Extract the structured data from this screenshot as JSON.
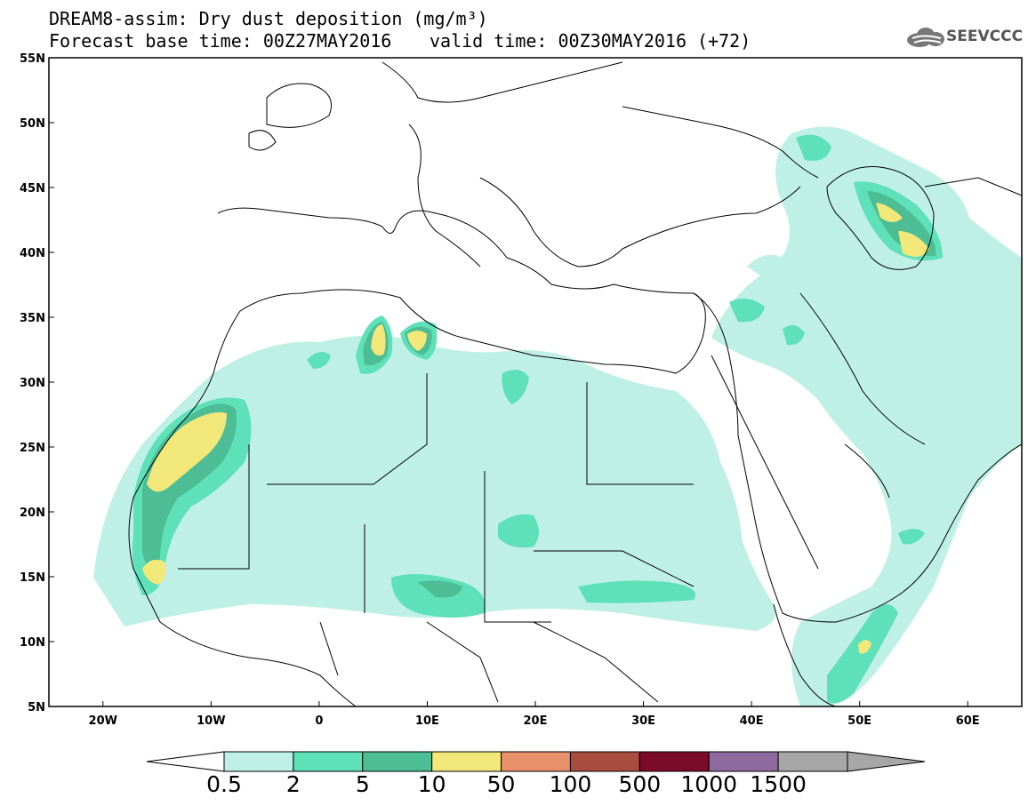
{
  "header": {
    "title_line1": "DREAM8-assim: Dry dust deposition (mg/m³)",
    "title_line2": "Forecast base time: 00Z27MAY2016",
    "valid_time": "valid time: 00Z30MAY2016 (+72)",
    "logo_text": "SEEVCCC"
  },
  "map": {
    "lat_range": [
      5,
      55
    ],
    "lon_range": [
      -25,
      65
    ],
    "lat_labels": [
      "55N",
      "50N",
      "45N",
      "40N",
      "35N",
      "30N",
      "25N",
      "20N",
      "15N",
      "10N",
      "5N"
    ],
    "lon_labels": [
      "20W",
      "10W",
      "0",
      "10E",
      "20E",
      "30E",
      "40E",
      "50E",
      "60E"
    ]
  },
  "colorbar": {
    "labels": [
      "0.5",
      "2",
      "5",
      "10",
      "50",
      "100",
      "500",
      "1000",
      "1500"
    ],
    "colors": [
      "#bff0e6",
      "#5ee0b8",
      "#4cbd94",
      "#f2e87a",
      "#e8906a",
      "#a84c3e",
      "#7a0b2b",
      "#8e6a9e",
      "#a7a7a7"
    ]
  }
}
